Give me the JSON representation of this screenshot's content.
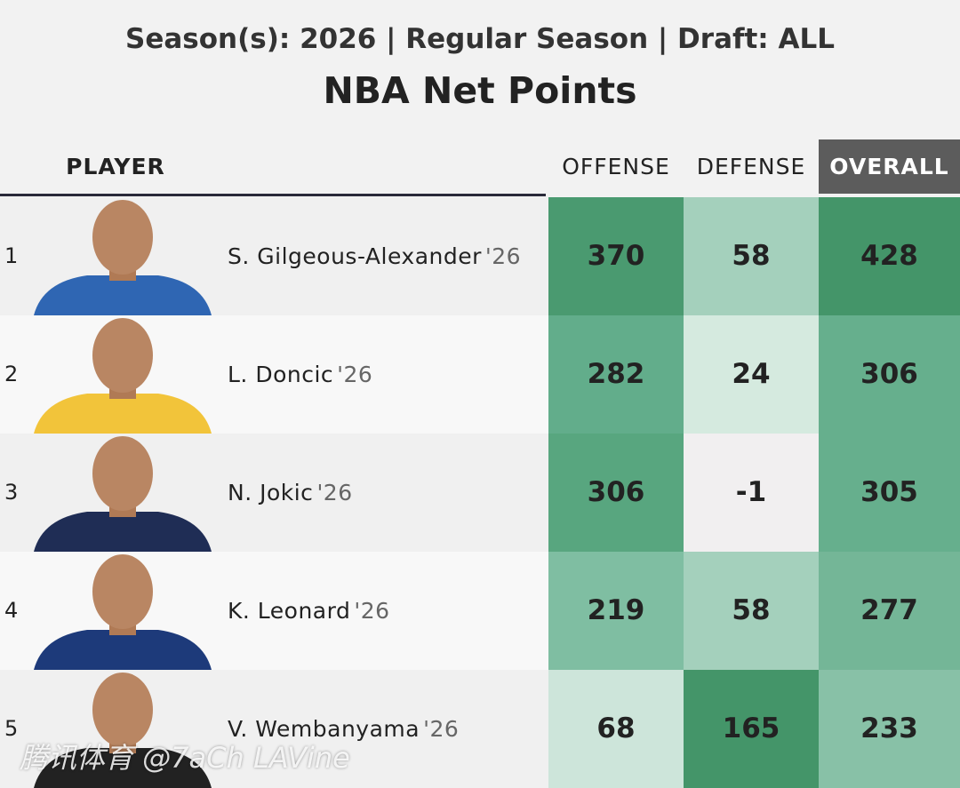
{
  "header": {
    "subtitle": "Season(s): 2026 | Regular Season | Draft: ALL",
    "title": "NBA Net Points"
  },
  "table": {
    "columns": [
      "PLAYER",
      "OFFENSE",
      "DEFENSE",
      "OVERALL"
    ],
    "rows": [
      {
        "rank": 1,
        "player": "S. Gilgeous-Alexander",
        "season": "'26",
        "offense": 370,
        "defense": 58,
        "overall": 428,
        "colors": [
          "#4a9a70",
          "#a4d0bc",
          "#449569"
        ]
      },
      {
        "rank": 2,
        "player": "L. Doncic",
        "season": "'26",
        "offense": 282,
        "defense": 24,
        "overall": 306,
        "colors": [
          "#62ad8b",
          "#d5eadf",
          "#66af8d"
        ]
      },
      {
        "rank": 3,
        "player": "N. Jokic",
        "season": "'26",
        "offense": 306,
        "defense": -1,
        "overall": 305,
        "colors": [
          "#58a67f",
          "#f1eff0",
          "#66af8d"
        ]
      },
      {
        "rank": 4,
        "player": "K. Leonard",
        "season": "'26",
        "offense": 219,
        "defense": 58,
        "overall": 277,
        "colors": [
          "#7fbea2",
          "#a4d0bc",
          "#74b697"
        ]
      },
      {
        "rank": 5,
        "player": "V. Wembanyama",
        "season": "'26",
        "offense": 68,
        "defense": 165,
        "overall": 233,
        "colors": [
          "#cde5da",
          "#449569",
          "#88c1a7"
        ]
      }
    ]
  },
  "watermark": "腾讯体育 @7aCh LAVine"
}
